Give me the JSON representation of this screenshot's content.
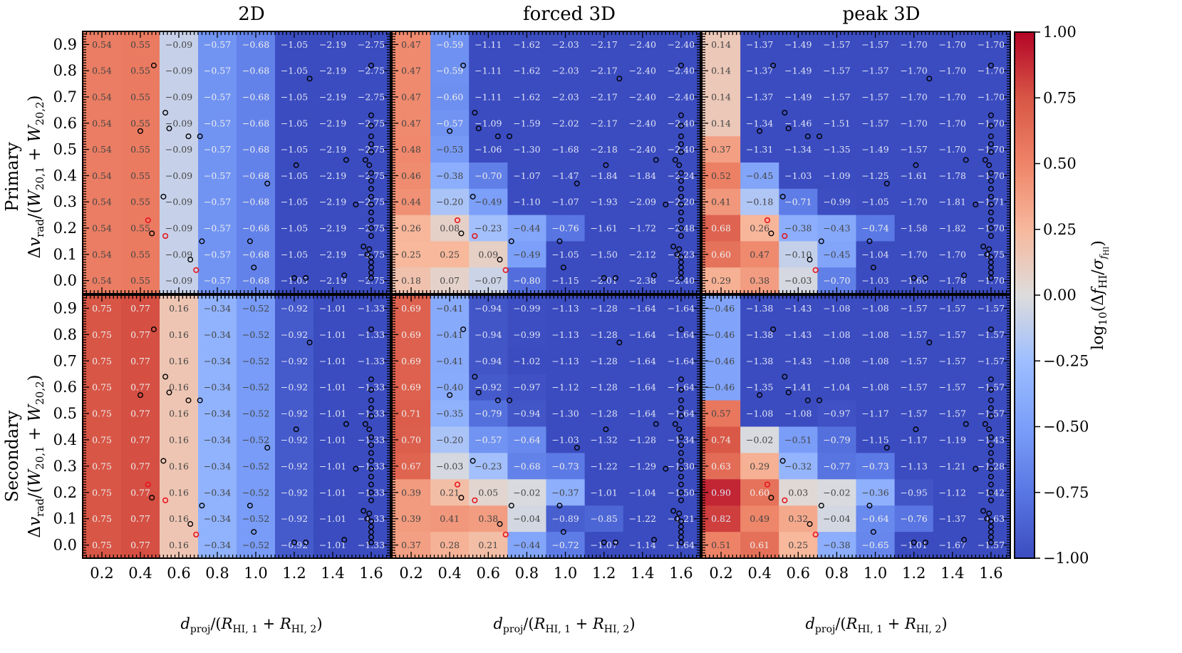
{
  "chart_data": {
    "type": "heatmap",
    "column_titles": [
      "2D",
      "forced 3D",
      "peak 3D"
    ],
    "row_labels": [
      "Primary",
      "Secondary"
    ],
    "ylabel_math": "Δv_rad/(W_20,1 + W_20,2)",
    "xlabel_math": "d_proj/(R_HI,1 + R_HI,2)",
    "colorbar_label_math": "log10(Δf_HI/σ_fHI)",
    "colorbar_ticks": [
      "1.00",
      "0.75",
      "0.50",
      "0.25",
      "0.00",
      "−0.25",
      "−0.50",
      "−0.75",
      "−1.00"
    ],
    "colorbar_range": [
      -1,
      1
    ],
    "xlim": [
      0.1,
      1.7
    ],
    "ylim": [
      -0.05,
      0.95
    ],
    "x_ticks": [
      "0.2",
      "0.4",
      "0.6",
      "0.8",
      "1.0",
      "1.2",
      "1.4",
      "1.6"
    ],
    "y_ticks": [
      "0.0",
      "0.1",
      "0.2",
      "0.3",
      "0.4",
      "0.5",
      "0.6",
      "0.7",
      "0.8",
      "0.9"
    ],
    "x_bin_edges": [
      0.1,
      0.3,
      0.5,
      0.7,
      0.9,
      1.1,
      1.3,
      1.5,
      1.7
    ],
    "y_bin_edges": [
      -0.05,
      0.05,
      0.15,
      0.25,
      0.35,
      0.45,
      0.55,
      0.65,
      0.75,
      0.85,
      0.95
    ],
    "colormap": [
      "#3b4cc0",
      "#dddcdc",
      "#b40426"
    ],
    "cell_values_note": "rows listed top (y=0.9) to bottom (y=0.0)",
    "panels": [
      {
        "row": "Primary",
        "column": "2D",
        "values": [
          [
            "0.54",
            "0.55",
            "−0.09",
            "−0.57",
            "−0.68",
            "−1.05",
            "−2.19",
            "−2.75"
          ],
          [
            "0.54",
            "0.55",
            "−0.09",
            "−0.57",
            "−0.68",
            "−1.05",
            "−2.19",
            "−2.75"
          ],
          [
            "0.54",
            "0.55",
            "−0.09",
            "−0.57",
            "−0.68",
            "−1.05",
            "−2.19",
            "−2.75"
          ],
          [
            "0.54",
            "0.55",
            "−0.09",
            "−0.57",
            "−0.68",
            "−1.05",
            "−2.19",
            "−2.75"
          ],
          [
            "0.54",
            "0.55",
            "−0.09",
            "−0.57",
            "−0.68",
            "−1.05",
            "−2.19",
            "−2.75"
          ],
          [
            "0.54",
            "0.55",
            "−0.09",
            "−0.57",
            "−0.68",
            "−1.05",
            "−2.19",
            "−2.75"
          ],
          [
            "0.54",
            "0.55",
            "−0.09",
            "−0.57",
            "−0.68",
            "−1.05",
            "−2.19",
            "−2.75"
          ],
          [
            "0.54",
            "0.55",
            "−0.09",
            "−0.57",
            "−0.68",
            "−1.05",
            "−2.19",
            "−2.75"
          ],
          [
            "0.54",
            "0.55",
            "−0.09",
            "−0.57",
            "−0.68",
            "−1.05",
            "−2.19",
            "−2.75"
          ],
          [
            "0.54",
            "0.55",
            "−0.09",
            "−0.57",
            "−0.68",
            "−1.05",
            "−2.19",
            "−2.75"
          ]
        ]
      },
      {
        "row": "Primary",
        "column": "forced 3D",
        "values": [
          [
            "0.47",
            "−0.59",
            "−1.11",
            "−1.62",
            "−2.03",
            "−2.17",
            "−2.40",
            "−2.40"
          ],
          [
            "0.47",
            "−0.59",
            "−1.11",
            "−1.62",
            "−2.03",
            "−2.17",
            "−2.40",
            "−2.40"
          ],
          [
            "0.47",
            "−0.60",
            "−1.11",
            "−1.62",
            "−2.03",
            "−2.17",
            "−2.40",
            "−2.40"
          ],
          [
            "0.47",
            "−0.57",
            "−1.09",
            "−1.59",
            "−2.02",
            "−2.17",
            "−2.40",
            "−2.40"
          ],
          [
            "0.48",
            "−0.53",
            "−1.06",
            "−1.30",
            "−1.68",
            "−2.18",
            "−2.40",
            "−2.40"
          ],
          [
            "0.46",
            "−0.38",
            "−0.70",
            "−1.07",
            "−1.47",
            "−1.84",
            "−1.84",
            "−2.24"
          ],
          [
            "0.44",
            "−0.20",
            "−0.49",
            "−1.10",
            "−1.07",
            "−1.93",
            "−2.09",
            "−2.20"
          ],
          [
            "0.26",
            "0.08",
            "−0.23",
            "−0.44",
            "−0.76",
            "−1.61",
            "−1.72",
            "−2.48"
          ],
          [
            "0.25",
            "0.25",
            "0.09",
            "−0.49",
            "−1.05",
            "−1.50",
            "−2.12",
            "−2.23"
          ],
          [
            "0.18",
            "0.07",
            "−0.07",
            "−0.80",
            "−1.15",
            "−2.01",
            "−2.38",
            "−2.40"
          ]
        ]
      },
      {
        "row": "Primary",
        "column": "peak 3D",
        "values": [
          [
            "0.14",
            "−1.37",
            "−1.49",
            "−1.57",
            "−1.57",
            "−1.70",
            "−1.70",
            "−1.70"
          ],
          [
            "0.14",
            "−1.37",
            "−1.49",
            "−1.57",
            "−1.57",
            "−1.70",
            "−1.70",
            "−1.70"
          ],
          [
            "0.14",
            "−1.37",
            "−1.49",
            "−1.57",
            "−1.57",
            "−1.70",
            "−1.70",
            "−1.70"
          ],
          [
            "0.14",
            "−1.34",
            "−1.46",
            "−1.51",
            "−1.57",
            "−1.70",
            "−1.70",
            "−1.70"
          ],
          [
            "0.37",
            "−1.31",
            "−1.34",
            "−1.35",
            "−1.49",
            "−1.57",
            "−1.70",
            "−1.70"
          ],
          [
            "0.52",
            "−0.45",
            "−1.03",
            "−1.09",
            "−1.25",
            "−1.61",
            "−1.78",
            "−1.70"
          ],
          [
            "0.41",
            "−0.18",
            "−0.71",
            "−0.99",
            "−1.05",
            "−1.70",
            "−1.81",
            "−1.71"
          ],
          [
            "0.68",
            "0.26",
            "−0.38",
            "−0.43",
            "−0.74",
            "−1.58",
            "−1.82",
            "−1.70"
          ],
          [
            "0.60",
            "0.47",
            "−0.10",
            "−0.45",
            "−1.04",
            "−1.70",
            "−1.70",
            "−1.75"
          ],
          [
            "0.29",
            "0.38",
            "−0.03",
            "−0.70",
            "−1.03",
            "−1.60",
            "−1.78",
            "−1.70"
          ]
        ]
      },
      {
        "row": "Secondary",
        "column": "2D",
        "values": [
          [
            "0.75",
            "0.77",
            "0.16",
            "−0.34",
            "−0.52",
            "−0.92",
            "−1.01",
            "−1.33"
          ],
          [
            "0.75",
            "0.77",
            "0.16",
            "−0.34",
            "−0.52",
            "−0.92",
            "−1.01",
            "−1.33"
          ],
          [
            "0.75",
            "0.77",
            "0.16",
            "−0.34",
            "−0.52",
            "−0.92",
            "−1.01",
            "−1.33"
          ],
          [
            "0.75",
            "0.77",
            "0.16",
            "−0.34",
            "−0.52",
            "−0.92",
            "−1.01",
            "−1.33"
          ],
          [
            "0.75",
            "0.77",
            "0.16",
            "−0.34",
            "−0.52",
            "−0.92",
            "−1.01",
            "−1.33"
          ],
          [
            "0.75",
            "0.77",
            "0.16",
            "−0.34",
            "−0.52",
            "−0.92",
            "−1.01",
            "−1.33"
          ],
          [
            "0.75",
            "0.77",
            "0.16",
            "−0.34",
            "−0.52",
            "−0.92",
            "−1.01",
            "−1.33"
          ],
          [
            "0.75",
            "0.77",
            "0.16",
            "−0.34",
            "−0.52",
            "−0.92",
            "−1.01",
            "−1.33"
          ],
          [
            "0.75",
            "0.77",
            "0.16",
            "−0.34",
            "−0.52",
            "−0.92",
            "−1.01",
            "−1.33"
          ],
          [
            "0.75",
            "0.77",
            "0.16",
            "−0.34",
            "−0.52",
            "−0.92",
            "−1.01",
            "−1.33"
          ]
        ]
      },
      {
        "row": "Secondary",
        "column": "forced 3D",
        "values": [
          [
            "0.69",
            "−0.41",
            "−0.94",
            "−0.99",
            "−1.13",
            "−1.28",
            "−1.64",
            "−1.64"
          ],
          [
            "0.69",
            "−0.41",
            "−0.94",
            "−0.99",
            "−1.13",
            "−1.28",
            "−1.64",
            "−1.64"
          ],
          [
            "0.69",
            "−0.41",
            "−0.94",
            "−1.02",
            "−1.13",
            "−1.28",
            "−1.64",
            "−1.64"
          ],
          [
            "0.69",
            "−0.40",
            "−0.92",
            "−0.97",
            "−1.12",
            "−1.28",
            "−1.64",
            "−1.64"
          ],
          [
            "0.71",
            "−0.35",
            "−0.79",
            "−0.94",
            "−1.30",
            "−1.28",
            "−1.64",
            "−1.64"
          ],
          [
            "0.70",
            "−0.20",
            "−0.57",
            "−0.64",
            "−1.03",
            "−1.32",
            "−1.28",
            "−1.34"
          ],
          [
            "0.67",
            "−0.03",
            "−0.23",
            "−0.68",
            "−0.73",
            "−1.22",
            "−1.29",
            "−1.30"
          ],
          [
            "0.39",
            "0.21",
            "0.05",
            "−0.02",
            "−0.37",
            "−1.01",
            "−1.04",
            "−1.50"
          ],
          [
            "0.39",
            "0.41",
            "0.38",
            "−0.04",
            "−0.89",
            "−0.85",
            "−1.22",
            "−1.21"
          ],
          [
            "0.37",
            "0.28",
            "0.21",
            "−0.44",
            "−0.72",
            "−1.07",
            "−1.14",
            "−1.64"
          ]
        ]
      },
      {
        "row": "Secondary",
        "column": "peak 3D",
        "values": [
          [
            "−0.46",
            "−1.38",
            "−1.43",
            "−1.08",
            "−1.08",
            "−1.57",
            "−1.57",
            "−1.57"
          ],
          [
            "−0.46",
            "−1.38",
            "−1.43",
            "−1.08",
            "−1.08",
            "−1.57",
            "−1.57",
            "−1.57"
          ],
          [
            "−0.46",
            "−1.38",
            "−1.43",
            "−1.08",
            "−1.08",
            "−1.57",
            "−1.57",
            "−1.57"
          ],
          [
            "−0.46",
            "−1.35",
            "−1.41",
            "−1.04",
            "−1.08",
            "−1.57",
            "−1.57",
            "−1.57"
          ],
          [
            "0.57",
            "−1.08",
            "−1.08",
            "−0.97",
            "−1.17",
            "−1.57",
            "−1.57",
            "−1.57"
          ],
          [
            "0.74",
            "−0.02",
            "−0.51",
            "−0.79",
            "−1.15",
            "−1.17",
            "−1.19",
            "−1.43"
          ],
          [
            "0.63",
            "0.29",
            "−0.32",
            "−0.77",
            "−0.73",
            "−1.13",
            "−1.21",
            "−1.28"
          ],
          [
            "0.90",
            "0.60",
            "0.03",
            "−0.02",
            "−0.36",
            "−0.95",
            "−1.12",
            "−1.42"
          ],
          [
            "0.82",
            "0.49",
            "0.32",
            "−0.04",
            "−0.64",
            "−0.76",
            "−1.37",
            "−1.63"
          ],
          [
            "0.51",
            "0.61",
            "0.25",
            "−0.38",
            "−0.65",
            "−1.01",
            "−1.67",
            "−1.57"
          ]
        ]
      }
    ],
    "pairs_black": [
      [
        0.47,
        0.82
      ],
      [
        0.4,
        0.57
      ],
      [
        0.53,
        0.64
      ],
      [
        0.55,
        0.58
      ],
      [
        0.65,
        0.55
      ],
      [
        0.71,
        0.55
      ],
      [
        0.52,
        0.32
      ],
      [
        0.46,
        0.18
      ],
      [
        0.72,
        0.15
      ],
      [
        0.66,
        0.08
      ],
      [
        0.97,
        0.15
      ],
      [
        0.99,
        0.05
      ],
      [
        1.06,
        0.37
      ],
      [
        1.21,
        0.44
      ],
      [
        1.28,
        0.77
      ],
      [
        1.2,
        0.01
      ],
      [
        1.26,
        0.01
      ],
      [
        1.47,
        0.46
      ],
      [
        1.52,
        0.29
      ],
      [
        1.46,
        0.02
      ],
      [
        1.6,
        0.82
      ],
      [
        1.6,
        0.63
      ],
      [
        1.6,
        0.59
      ],
      [
        1.6,
        0.55
      ],
      [
        1.6,
        0.52
      ],
      [
        1.6,
        0.49
      ],
      [
        1.57,
        0.46
      ],
      [
        1.59,
        0.44
      ],
      [
        1.6,
        0.41
      ],
      [
        1.6,
        0.38
      ],
      [
        1.6,
        0.35
      ],
      [
        1.6,
        0.32
      ],
      [
        1.6,
        0.29
      ],
      [
        1.6,
        0.26
      ],
      [
        1.6,
        0.23
      ],
      [
        1.6,
        0.2
      ],
      [
        1.6,
        0.17
      ],
      [
        1.56,
        0.13
      ],
      [
        1.59,
        0.12
      ],
      [
        1.58,
        0.1
      ],
      [
        1.6,
        0.09
      ],
      [
        1.6,
        0.07
      ],
      [
        1.6,
        0.05
      ],
      [
        1.6,
        0.03
      ],
      [
        1.6,
        0.01
      ]
    ],
    "pairs_red": [
      [
        0.44,
        0.23
      ],
      [
        0.53,
        0.17
      ],
      [
        0.69,
        0.04
      ]
    ]
  }
}
